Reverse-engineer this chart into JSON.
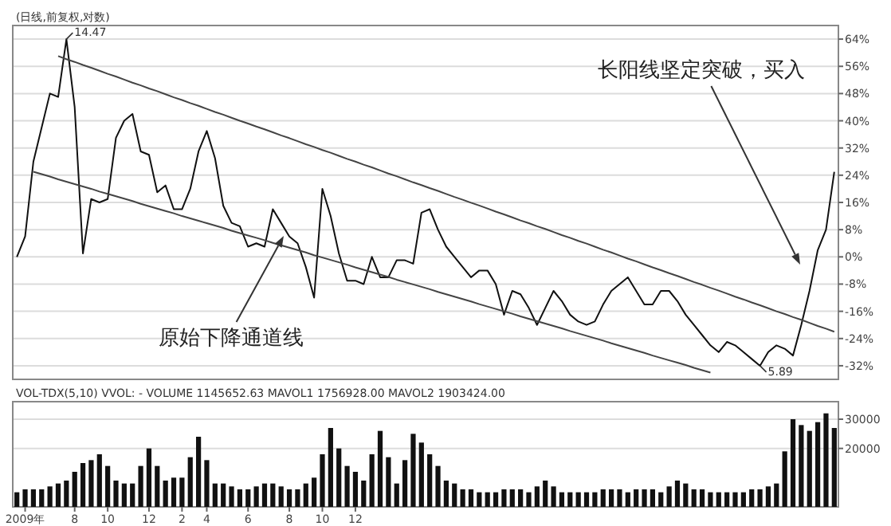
{
  "chart_data": [
    {
      "type": "line",
      "title": "(日线,前复权,对数)",
      "tick_labels": "y",
      "grid": "y",
      "ylim": [
        -36,
        68
      ],
      "categories": [
        null,
        null,
        null,
        null,
        null,
        null,
        null,
        null,
        null,
        null,
        null,
        null,
        null,
        null,
        null,
        null,
        null,
        null,
        null,
        null,
        null,
        null,
        null,
        null,
        null,
        null,
        null,
        null,
        null,
        null,
        null,
        null,
        null,
        null,
        null,
        null,
        null,
        null,
        null,
        null,
        null,
        null,
        null,
        null,
        null,
        null,
        null,
        null,
        null,
        null,
        null,
        null,
        null,
        null,
        null,
        null,
        null,
        null,
        null,
        null,
        null,
        null,
        null,
        null,
        null,
        null,
        null,
        null,
        null,
        null,
        null,
        null,
        null,
        null,
        null,
        null,
        null,
        null,
        null,
        null,
        null,
        null,
        null,
        null,
        null,
        null,
        null,
        null,
        null,
        null,
        null,
        null,
        null,
        null,
        null,
        null,
        null,
        null,
        null,
        null
      ],
      "yticks": [
        {
          "value": 64,
          "label": "64%"
        },
        {
          "value": 56,
          "label": "56%"
        },
        {
          "value": 48,
          "label": "48%"
        },
        {
          "value": 40,
          "label": "40%"
        },
        {
          "value": 32,
          "label": "32%"
        },
        {
          "value": 24,
          "label": "24%"
        },
        {
          "value": 16,
          "label": "16%"
        },
        {
          "value": 8,
          "label": "8%"
        },
        {
          "value": 0,
          "label": "0%"
        },
        {
          "value": -8,
          "label": "-8%"
        },
        {
          "value": -16,
          "label": "-16%"
        },
        {
          "value": -24,
          "label": "-24%"
        },
        {
          "value": -32,
          "label": "-32%"
        }
      ],
      "series": [
        {
          "color": "#111111",
          "values": [
            0,
            6,
            28,
            38,
            48,
            47,
            64,
            44,
            1,
            17,
            16,
            17,
            35,
            40,
            42,
            31,
            30,
            19,
            21,
            14,
            14,
            20,
            31,
            37,
            29,
            15,
            10,
            9,
            3,
            4,
            3,
            14,
            10,
            6,
            4,
            -3,
            -12,
            20,
            12,
            1,
            -7,
            -7,
            -8,
            0,
            -6,
            -6,
            -1,
            -1,
            -2,
            13,
            14,
            8,
            3,
            0,
            -3,
            -6,
            -4,
            -4,
            -8,
            -17,
            -10,
            -11,
            -15,
            -20,
            -15,
            -10,
            -13,
            -17,
            -19,
            -20,
            -19,
            -14,
            -10,
            -8,
            -6,
            -10,
            -14,
            -14,
            -10,
            -10,
            -13,
            -17,
            -20,
            -23,
            -26,
            -28,
            -25,
            -26,
            -28,
            -30,
            -32,
            -28,
            -26,
            -27,
            -29,
            -20,
            -10,
            2,
            8,
            25
          ]
        },
        {
          "color": "#444444",
          "values": [
            null,
            null,
            null,
            null,
            null,
            59.0,
            58.1,
            57.3,
            56.4,
            55.6,
            54.7,
            53.8,
            53.0,
            52.1,
            51.2,
            50.4,
            49.5,
            48.7,
            47.8,
            46.9,
            46.1,
            45.2,
            44.4,
            43.5,
            42.6,
            41.8,
            40.9,
            40.0,
            39.2,
            38.3,
            37.5,
            36.6,
            35.7,
            34.9,
            34.0,
            33.1,
            32.3,
            31.4,
            30.6,
            29.7,
            28.8,
            28.0,
            27.1,
            26.3,
            25.4,
            24.5,
            23.7,
            22.8,
            21.9,
            21.1,
            20.2,
            19.4,
            18.5,
            17.6,
            16.8,
            15.9,
            15.1,
            14.2,
            13.3,
            12.5,
            11.6,
            10.7,
            9.9,
            9.0,
            8.2,
            7.3,
            6.4,
            5.6,
            4.7,
            3.9,
            3.0,
            2.1,
            1.3,
            0.4,
            -0.5,
            -1.3,
            -2.2,
            -3.1,
            -3.9,
            -4.8,
            -5.6,
            -6.5,
            -7.4,
            -8.2,
            -9.1,
            -9.9,
            -10.8,
            -11.7,
            -12.5,
            -13.4,
            -14.2,
            -15.1,
            -16.0,
            -16.8,
            -17.7,
            -18.5,
            -19.4,
            -20.3,
            -21.1,
            -22.0
          ]
        },
        {
          "color": "#444444",
          "values": [
            null,
            null,
            25.0,
            24.3,
            23.6,
            22.8,
            22.1,
            21.4,
            20.7,
            20.0,
            19.2,
            18.5,
            17.8,
            17.1,
            16.4,
            15.6,
            14.9,
            14.2,
            13.5,
            12.8,
            12.0,
            11.3,
            10.6,
            9.9,
            9.2,
            8.5,
            7.7,
            7.0,
            6.3,
            5.6,
            4.9,
            4.1,
            3.4,
            2.7,
            2.0,
            1.3,
            0.5,
            -0.2,
            -0.9,
            -1.6,
            -2.3,
            -3.1,
            -3.8,
            -4.5,
            -5.2,
            -5.9,
            -6.7,
            -7.4,
            -8.1,
            -8.8,
            -9.5,
            -10.3,
            -11.0,
            -11.7,
            -12.4,
            -13.1,
            -13.9,
            -14.6,
            -15.3,
            -16.0,
            -16.7,
            -17.5,
            -18.2,
            -18.9,
            -19.6,
            -20.3,
            -21.0,
            -21.8,
            -22.5,
            -23.2,
            -23.9,
            -24.6,
            -25.4,
            -26.1,
            -26.8,
            -27.5,
            -28.2,
            -29.0,
            -29.7,
            -30.4,
            -31.1,
            -31.8,
            -32.6,
            -33.3,
            -34.0,
            null,
            null,
            null,
            null,
            null,
            null,
            null,
            null,
            null,
            null,
            null,
            null,
            null,
            null,
            null
          ]
        }
      ],
      "annotations": [
        "14.47",
        "5.89",
        "原始下降通道线",
        "长阳线坚定突破，买入"
      ]
    },
    {
      "type": "bar",
      "title": "VOL-TDX(5,10) VVOL: - VOLUME 1145652.63 MAVOL1 1756928.00 MAVOL2 1903424.00",
      "color": "#111111",
      "ylim": [
        0,
        36000
      ],
      "yticks": [
        20000,
        30000
      ],
      "grid": "y",
      "categories": [
        null,
        "2009年",
        null,
        null,
        null,
        null,
        null,
        "8",
        null,
        null,
        null,
        "10",
        null,
        null,
        null,
        null,
        "12",
        null,
        null,
        null,
        "2",
        null,
        null,
        "4",
        null,
        null,
        null,
        null,
        "6",
        null,
        null,
        null,
        null,
        "8",
        null,
        null,
        null,
        "10",
        null,
        null,
        null,
        "12",
        null,
        null,
        null,
        null,
        null,
        null,
        null,
        null,
        null,
        null,
        null,
        null,
        null,
        null,
        null,
        null,
        null,
        null,
        null,
        null,
        null,
        null,
        null,
        null,
        null,
        null,
        null,
        null,
        null,
        null,
        null,
        null,
        null,
        null,
        null,
        null,
        null,
        null,
        null,
        null,
        null,
        null,
        null,
        null,
        null,
        null,
        null,
        null,
        null,
        null,
        null,
        null,
        null,
        null,
        null,
        null,
        null,
        null
      ],
      "values": [
        5000,
        6000,
        6000,
        6000,
        7000,
        8000,
        9000,
        12000,
        15000,
        16000,
        18000,
        14000,
        9000,
        8000,
        8000,
        14000,
        20000,
        14000,
        9000,
        10000,
        10000,
        17000,
        24000,
        16000,
        8000,
        8000,
        7000,
        6000,
        6000,
        7000,
        8000,
        8000,
        7000,
        6000,
        6000,
        8000,
        10000,
        18000,
        27000,
        20000,
        14000,
        12000,
        9000,
        18000,
        26000,
        17000,
        8000,
        16000,
        25000,
        22000,
        18000,
        14000,
        9000,
        8000,
        6000,
        6000,
        5000,
        5000,
        5000,
        6000,
        6000,
        6000,
        5000,
        7000,
        9000,
        7000,
        5000,
        5000,
        5000,
        5000,
        5000,
        6000,
        6000,
        6000,
        5000,
        6000,
        6000,
        6000,
        5000,
        7000,
        9000,
        8000,
        6000,
        6000,
        5000,
        5000,
        5000,
        5000,
        5000,
        6000,
        6000,
        7000,
        8000,
        19000,
        30000,
        28000,
        26000,
        29000,
        32000,
        27000
      ]
    }
  ]
}
